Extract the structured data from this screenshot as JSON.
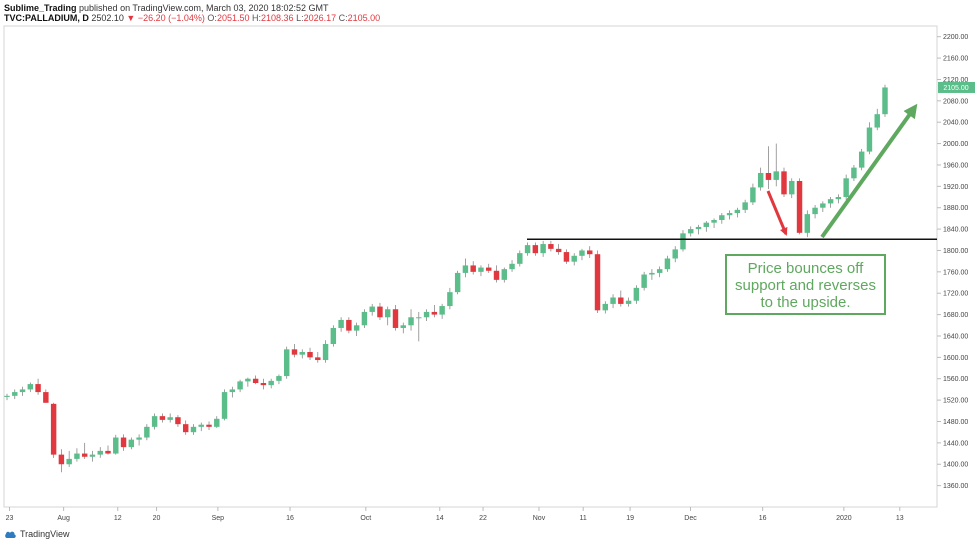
{
  "header": {
    "author": "Sublime_Trading",
    "published": "published on TradingView.com, March 03, 2020 18:02:52 GMT",
    "symbol": "TVC:PALLADIUM, D",
    "last": "2502.10",
    "change_arrow": "▼",
    "change": "−26.20 (−1.04%)",
    "o_label": "O:",
    "o_value": "2051.50",
    "h_label": "H:",
    "h_value": "2108.36",
    "l_label": "L:",
    "l_value": "2026.17",
    "c_label": "C:",
    "c_value": "2105.00"
  },
  "footer": {
    "brand": "TradingView"
  },
  "colors": {
    "up": "#5bbd8a",
    "down": "#e0383e",
    "annotation": "#5fa85f",
    "price_tag": "#5bbd8a"
  },
  "chart_data": {
    "type": "candlestick",
    "ylim": [
      1320,
      2220
    ],
    "x_ticks": [
      "23",
      "Aug",
      "12",
      "20",
      "Sep",
      "16",
      "Oct",
      "14",
      "22",
      "Nov",
      "11",
      "19",
      "Dec",
      "16",
      "2020",
      "13"
    ],
    "y_ticks": [
      "1360.00",
      "1400.00",
      "1440.00",
      "1480.00",
      "1520.00",
      "1560.00",
      "1600.00",
      "1640.00",
      "1680.00",
      "1720.00",
      "1760.00",
      "1800.00",
      "1840.00",
      "1880.00",
      "1920.00",
      "1960.00",
      "2000.00",
      "2040.00",
      "2080.00",
      "2120.00",
      "2160.00",
      "2200.00"
    ],
    "last_price_label": "2105.00",
    "last_price": 2105,
    "support_level": 1821,
    "candles": [
      {
        "o": 1526,
        "h": 1532,
        "l": 1520,
        "c": 1528
      },
      {
        "o": 1528,
        "h": 1540,
        "l": 1522,
        "c": 1535
      },
      {
        "o": 1535,
        "h": 1545,
        "l": 1528,
        "c": 1540
      },
      {
        "o": 1540,
        "h": 1553,
        "l": 1535,
        "c": 1550
      },
      {
        "o": 1550,
        "h": 1560,
        "l": 1530,
        "c": 1535
      },
      {
        "o": 1535,
        "h": 1540,
        "l": 1515,
        "c": 1515
      },
      {
        "o": 1513,
        "h": 1515,
        "l": 1412,
        "c": 1418
      },
      {
        "o": 1418,
        "h": 1428,
        "l": 1385,
        "c": 1400
      },
      {
        "o": 1400,
        "h": 1425,
        "l": 1395,
        "c": 1410
      },
      {
        "o": 1410,
        "h": 1430,
        "l": 1405,
        "c": 1420
      },
      {
        "o": 1420,
        "h": 1440,
        "l": 1410,
        "c": 1414
      },
      {
        "o": 1414,
        "h": 1425,
        "l": 1405,
        "c": 1418
      },
      {
        "o": 1418,
        "h": 1432,
        "l": 1412,
        "c": 1425
      },
      {
        "o": 1425,
        "h": 1435,
        "l": 1418,
        "c": 1420
      },
      {
        "o": 1420,
        "h": 1455,
        "l": 1418,
        "c": 1450
      },
      {
        "o": 1450,
        "h": 1456,
        "l": 1425,
        "c": 1432
      },
      {
        "o": 1432,
        "h": 1450,
        "l": 1428,
        "c": 1446
      },
      {
        "o": 1446,
        "h": 1456,
        "l": 1435,
        "c": 1450
      },
      {
        "o": 1450,
        "h": 1475,
        "l": 1445,
        "c": 1470
      },
      {
        "o": 1470,
        "h": 1495,
        "l": 1465,
        "c": 1490
      },
      {
        "o": 1490,
        "h": 1495,
        "l": 1478,
        "c": 1483
      },
      {
        "o": 1483,
        "h": 1495,
        "l": 1478,
        "c": 1488
      },
      {
        "o": 1488,
        "h": 1492,
        "l": 1470,
        "c": 1475
      },
      {
        "o": 1475,
        "h": 1482,
        "l": 1455,
        "c": 1460
      },
      {
        "o": 1460,
        "h": 1475,
        "l": 1455,
        "c": 1470
      },
      {
        "o": 1470,
        "h": 1478,
        "l": 1462,
        "c": 1474
      },
      {
        "o": 1474,
        "h": 1480,
        "l": 1464,
        "c": 1470
      },
      {
        "o": 1470,
        "h": 1490,
        "l": 1468,
        "c": 1485
      },
      {
        "o": 1485,
        "h": 1540,
        "l": 1482,
        "c": 1535
      },
      {
        "o": 1535,
        "h": 1545,
        "l": 1525,
        "c": 1540
      },
      {
        "o": 1540,
        "h": 1558,
        "l": 1535,
        "c": 1555
      },
      {
        "o": 1555,
        "h": 1562,
        "l": 1545,
        "c": 1560
      },
      {
        "o": 1560,
        "h": 1566,
        "l": 1550,
        "c": 1552
      },
      {
        "o": 1552,
        "h": 1560,
        "l": 1540,
        "c": 1548
      },
      {
        "o": 1548,
        "h": 1560,
        "l": 1542,
        "c": 1556
      },
      {
        "o": 1556,
        "h": 1568,
        "l": 1550,
        "c": 1565
      },
      {
        "o": 1565,
        "h": 1620,
        "l": 1560,
        "c": 1615
      },
      {
        "o": 1615,
        "h": 1625,
        "l": 1600,
        "c": 1605
      },
      {
        "o": 1605,
        "h": 1615,
        "l": 1598,
        "c": 1610
      },
      {
        "o": 1610,
        "h": 1618,
        "l": 1595,
        "c": 1600
      },
      {
        "o": 1600,
        "h": 1610,
        "l": 1590,
        "c": 1595
      },
      {
        "o": 1595,
        "h": 1632,
        "l": 1590,
        "c": 1625
      },
      {
        "o": 1625,
        "h": 1660,
        "l": 1620,
        "c": 1655
      },
      {
        "o": 1655,
        "h": 1675,
        "l": 1648,
        "c": 1670
      },
      {
        "o": 1670,
        "h": 1675,
        "l": 1645,
        "c": 1650
      },
      {
        "o": 1650,
        "h": 1665,
        "l": 1640,
        "c": 1660
      },
      {
        "o": 1660,
        "h": 1690,
        "l": 1655,
        "c": 1685
      },
      {
        "o": 1685,
        "h": 1700,
        "l": 1678,
        "c": 1695
      },
      {
        "o": 1695,
        "h": 1702,
        "l": 1670,
        "c": 1675
      },
      {
        "o": 1675,
        "h": 1695,
        "l": 1660,
        "c": 1690
      },
      {
        "o": 1690,
        "h": 1698,
        "l": 1650,
        "c": 1655
      },
      {
        "o": 1655,
        "h": 1665,
        "l": 1645,
        "c": 1660
      },
      {
        "o": 1660,
        "h": 1690,
        "l": 1650,
        "c": 1675
      },
      {
        "o": 1675,
        "h": 1685,
        "l": 1630,
        "c": 1675
      },
      {
        "o": 1675,
        "h": 1690,
        "l": 1668,
        "c": 1685
      },
      {
        "o": 1685,
        "h": 1698,
        "l": 1675,
        "c": 1680
      },
      {
        "o": 1680,
        "h": 1700,
        "l": 1672,
        "c": 1696
      },
      {
        "o": 1696,
        "h": 1730,
        "l": 1690,
        "c": 1722
      },
      {
        "o": 1722,
        "h": 1762,
        "l": 1718,
        "c": 1758
      },
      {
        "o": 1758,
        "h": 1785,
        "l": 1750,
        "c": 1772
      },
      {
        "o": 1772,
        "h": 1780,
        "l": 1755,
        "c": 1760
      },
      {
        "o": 1760,
        "h": 1772,
        "l": 1752,
        "c": 1768
      },
      {
        "o": 1768,
        "h": 1775,
        "l": 1758,
        "c": 1762
      },
      {
        "o": 1762,
        "h": 1772,
        "l": 1740,
        "c": 1745
      },
      {
        "o": 1745,
        "h": 1768,
        "l": 1740,
        "c": 1765
      },
      {
        "o": 1765,
        "h": 1782,
        "l": 1760,
        "c": 1775
      },
      {
        "o": 1775,
        "h": 1800,
        "l": 1770,
        "c": 1795
      },
      {
        "o": 1795,
        "h": 1815,
        "l": 1790,
        "c": 1810
      },
      {
        "o": 1810,
        "h": 1815,
        "l": 1790,
        "c": 1795
      },
      {
        "o": 1795,
        "h": 1818,
        "l": 1788,
        "c": 1812
      },
      {
        "o": 1812,
        "h": 1818,
        "l": 1798,
        "c": 1803
      },
      {
        "o": 1803,
        "h": 1812,
        "l": 1792,
        "c": 1797
      },
      {
        "o": 1797,
        "h": 1802,
        "l": 1775,
        "c": 1779
      },
      {
        "o": 1779,
        "h": 1795,
        "l": 1772,
        "c": 1790
      },
      {
        "o": 1790,
        "h": 1803,
        "l": 1782,
        "c": 1800
      },
      {
        "o": 1800,
        "h": 1808,
        "l": 1786,
        "c": 1793
      },
      {
        "o": 1793,
        "h": 1800,
        "l": 1683,
        "c": 1688
      },
      {
        "o": 1688,
        "h": 1705,
        "l": 1682,
        "c": 1700
      },
      {
        "o": 1700,
        "h": 1718,
        "l": 1692,
        "c": 1712
      },
      {
        "o": 1712,
        "h": 1725,
        "l": 1695,
        "c": 1700
      },
      {
        "o": 1700,
        "h": 1712,
        "l": 1695,
        "c": 1706
      },
      {
        "o": 1706,
        "h": 1735,
        "l": 1700,
        "c": 1730
      },
      {
        "o": 1730,
        "h": 1760,
        "l": 1725,
        "c": 1755
      },
      {
        "o": 1755,
        "h": 1765,
        "l": 1745,
        "c": 1758
      },
      {
        "o": 1758,
        "h": 1770,
        "l": 1750,
        "c": 1765
      },
      {
        "o": 1765,
        "h": 1790,
        "l": 1760,
        "c": 1785
      },
      {
        "o": 1785,
        "h": 1808,
        "l": 1778,
        "c": 1802
      },
      {
        "o": 1802,
        "h": 1838,
        "l": 1798,
        "c": 1832
      },
      {
        "o": 1832,
        "h": 1845,
        "l": 1826,
        "c": 1840
      },
      {
        "o": 1840,
        "h": 1848,
        "l": 1830,
        "c": 1844
      },
      {
        "o": 1844,
        "h": 1855,
        "l": 1835,
        "c": 1852
      },
      {
        "o": 1852,
        "h": 1860,
        "l": 1842,
        "c": 1857
      },
      {
        "o": 1857,
        "h": 1870,
        "l": 1850,
        "c": 1866
      },
      {
        "o": 1866,
        "h": 1875,
        "l": 1858,
        "c": 1870
      },
      {
        "o": 1870,
        "h": 1880,
        "l": 1862,
        "c": 1876
      },
      {
        "o": 1876,
        "h": 1895,
        "l": 1870,
        "c": 1890
      },
      {
        "o": 1890,
        "h": 1925,
        "l": 1885,
        "c": 1918
      },
      {
        "o": 1918,
        "h": 1955,
        "l": 1912,
        "c": 1945
      },
      {
        "o": 1945,
        "h": 1995,
        "l": 1915,
        "c": 1932
      },
      {
        "o": 1932,
        "h": 2000,
        "l": 1920,
        "c": 1948
      },
      {
        "o": 1948,
        "h": 1955,
        "l": 1900,
        "c": 1905
      },
      {
        "o": 1905,
        "h": 1935,
        "l": 1898,
        "c": 1930
      },
      {
        "o": 1930,
        "h": 1935,
        "l": 1830,
        "c": 1833
      },
      {
        "o": 1833,
        "h": 1875,
        "l": 1825,
        "c": 1868
      },
      {
        "o": 1868,
        "h": 1885,
        "l": 1860,
        "c": 1880
      },
      {
        "o": 1880,
        "h": 1892,
        "l": 1872,
        "c": 1888
      },
      {
        "o": 1888,
        "h": 1900,
        "l": 1880,
        "c": 1896
      },
      {
        "o": 1896,
        "h": 1905,
        "l": 1888,
        "c": 1900
      },
      {
        "o": 1900,
        "h": 1942,
        "l": 1895,
        "c": 1935
      },
      {
        "o": 1935,
        "h": 1960,
        "l": 1930,
        "c": 1955
      },
      {
        "o": 1955,
        "h": 1990,
        "l": 1950,
        "c": 1985
      },
      {
        "o": 1985,
        "h": 2040,
        "l": 1980,
        "c": 2030
      },
      {
        "o": 2030,
        "h": 2065,
        "l": 2025,
        "c": 2055
      },
      {
        "o": 2055,
        "h": 2110,
        "l": 2050,
        "c": 2105
      }
    ],
    "annotation": {
      "text": "Price bounces off support and reverses to the upside."
    }
  }
}
